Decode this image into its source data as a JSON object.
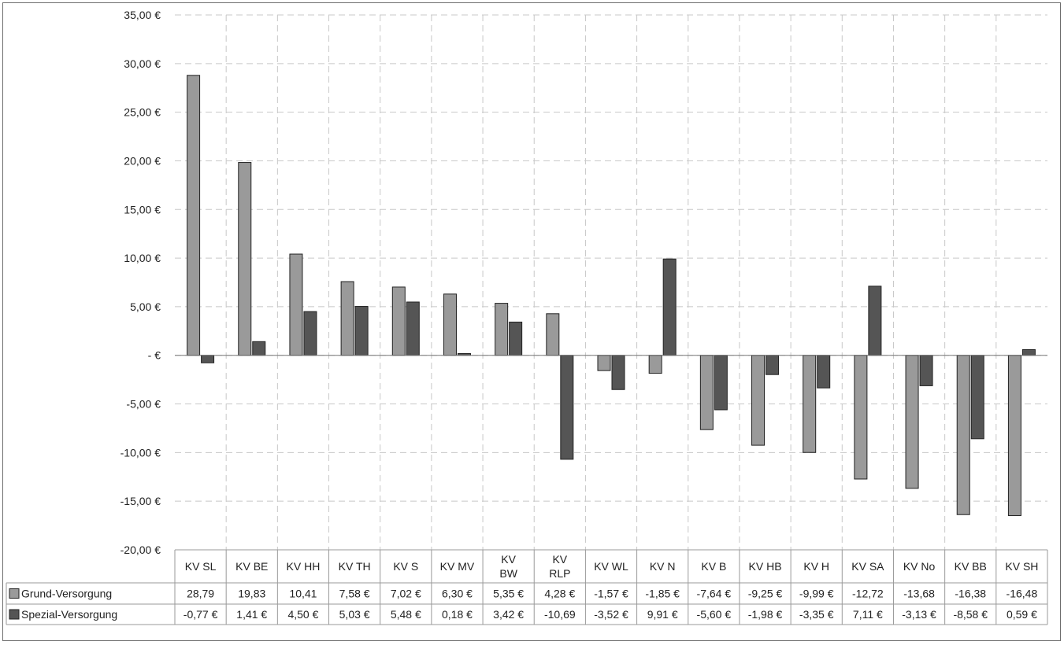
{
  "chart_data": {
    "type": "bar",
    "categories": [
      [
        "KV SL"
      ],
      [
        "KV BE"
      ],
      [
        "KV HH"
      ],
      [
        "KV TH"
      ],
      [
        "KV S"
      ],
      [
        "KV MV"
      ],
      [
        "KV",
        "BW"
      ],
      [
        "KV",
        "RLP"
      ],
      [
        "KV WL"
      ],
      [
        "KV N"
      ],
      [
        "KV B"
      ],
      [
        "KV HB"
      ],
      [
        "KV H"
      ],
      [
        "KV SA"
      ],
      [
        "KV No"
      ],
      [
        "KV BB"
      ],
      [
        "KV SH"
      ]
    ],
    "series": [
      {
        "name": "Grund-Versorgung",
        "color": "#9a9a9a",
        "values": [
          28.79,
          19.83,
          10.41,
          7.58,
          7.02,
          6.3,
          5.35,
          4.28,
          -1.57,
          -1.85,
          -7.64,
          -9.25,
          -9.99,
          -12.72,
          -13.68,
          -16.38,
          -16.48
        ],
        "labels": [
          "28,79",
          "19,83",
          "10,41",
          "7,58 €",
          "7,02 €",
          "6,30 €",
          "5,35 €",
          "4,28 €",
          "-1,57 €",
          "-1,85 €",
          "-7,64 €",
          "-9,25 €",
          "-9,99 €",
          "-12,72",
          "-13,68",
          "-16,38",
          "-16,48"
        ]
      },
      {
        "name": "Spezial-Versorgung",
        "color": "#555555",
        "values": [
          -0.77,
          1.41,
          4.5,
          5.03,
          5.48,
          0.18,
          3.42,
          -10.69,
          -3.52,
          9.91,
          -5.6,
          -1.98,
          -3.35,
          7.11,
          -3.13,
          -8.58,
          0.59
        ],
        "labels": [
          "-0,77 €",
          "1,41 €",
          "4,50 €",
          "5,03 €",
          "5,48 €",
          "0,18 €",
          "3,42 €",
          "-10,69",
          "-3,52 €",
          "9,91 €",
          "-5,60 €",
          "-1,98 €",
          "-3,35 €",
          "7,11 €",
          "-3,13 €",
          "-8,58 €",
          "0,59 €"
        ]
      }
    ],
    "ylim": [
      -20,
      35
    ],
    "y_ticks": [
      35,
      30,
      25,
      20,
      15,
      10,
      5,
      0,
      -5,
      -10,
      -15,
      -20
    ],
    "y_tick_labels": [
      "35,00 €",
      "30,00 €",
      "25,00 €",
      "20,00 €",
      "15,00 €",
      "10,00 €",
      "5,00 €",
      "-     €",
      "-5,00 €",
      "-10,00 €",
      "-15,00 €",
      "-20,00 €"
    ],
    "grid": true,
    "legend": "data-table"
  }
}
